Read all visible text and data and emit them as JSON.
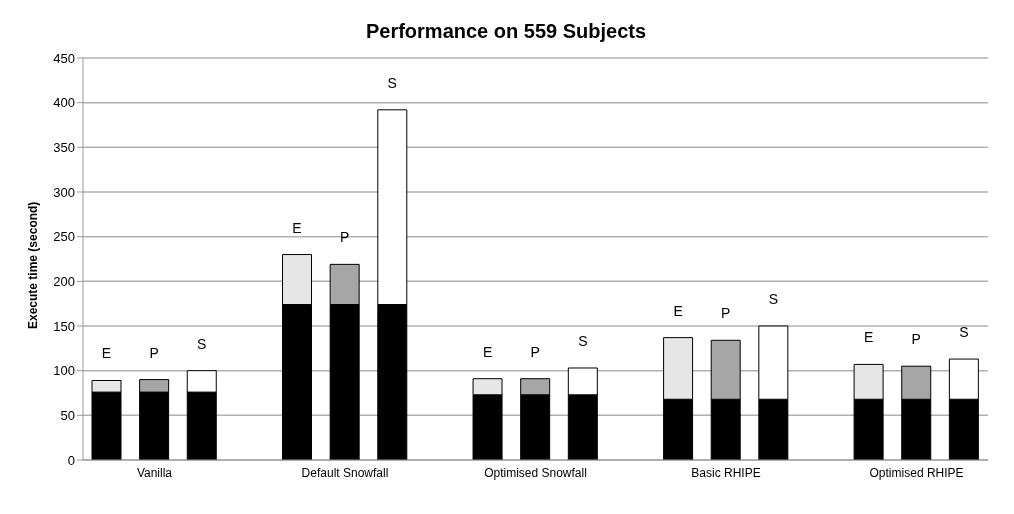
{
  "chart_data": {
    "type": "bar",
    "title": "Performance on 559 Subjects",
    "ylabel": "Execute time (second)",
    "stacked": true,
    "grid": "y",
    "legend": false,
    "categories": [
      null,
      "Vanilla",
      null,
      null,
      null,
      "Default Snowfall",
      null,
      null,
      null,
      "Optimised Snowfall",
      null,
      null,
      null,
      "Basic RHIPE",
      null,
      null,
      null,
      "Optimised RHIPE",
      null
    ],
    "series": [
      {
        "color": "#000000",
        "values": [
          76,
          76,
          76,
          null,
          174,
          174,
          174,
          null,
          73,
          73,
          73,
          null,
          68,
          68,
          68,
          null,
          68,
          68,
          68
        ]
      },
      {
        "name": "E",
        "color": "#e6e6e6",
        "values": [
          13,
          null,
          null,
          null,
          56,
          null,
          null,
          null,
          18,
          null,
          null,
          null,
          69,
          null,
          null,
          null,
          39,
          null,
          null
        ]
      },
      {
        "name": "P",
        "color": "#a6a6a6",
        "values": [
          null,
          14,
          null,
          null,
          null,
          45,
          null,
          null,
          null,
          18,
          null,
          null,
          null,
          66,
          null,
          null,
          null,
          37,
          null
        ]
      },
      {
        "name": "S",
        "color": "#ffffff",
        "values": [
          null,
          null,
          24,
          null,
          null,
          null,
          218,
          null,
          null,
          null,
          30,
          null,
          null,
          null,
          82,
          null,
          null,
          null,
          45
        ]
      }
    ],
    "ylim": [
      0,
      450
    ],
    "yticks": [
      0,
      50,
      100,
      150,
      200,
      250,
      300,
      350,
      400,
      450
    ]
  }
}
